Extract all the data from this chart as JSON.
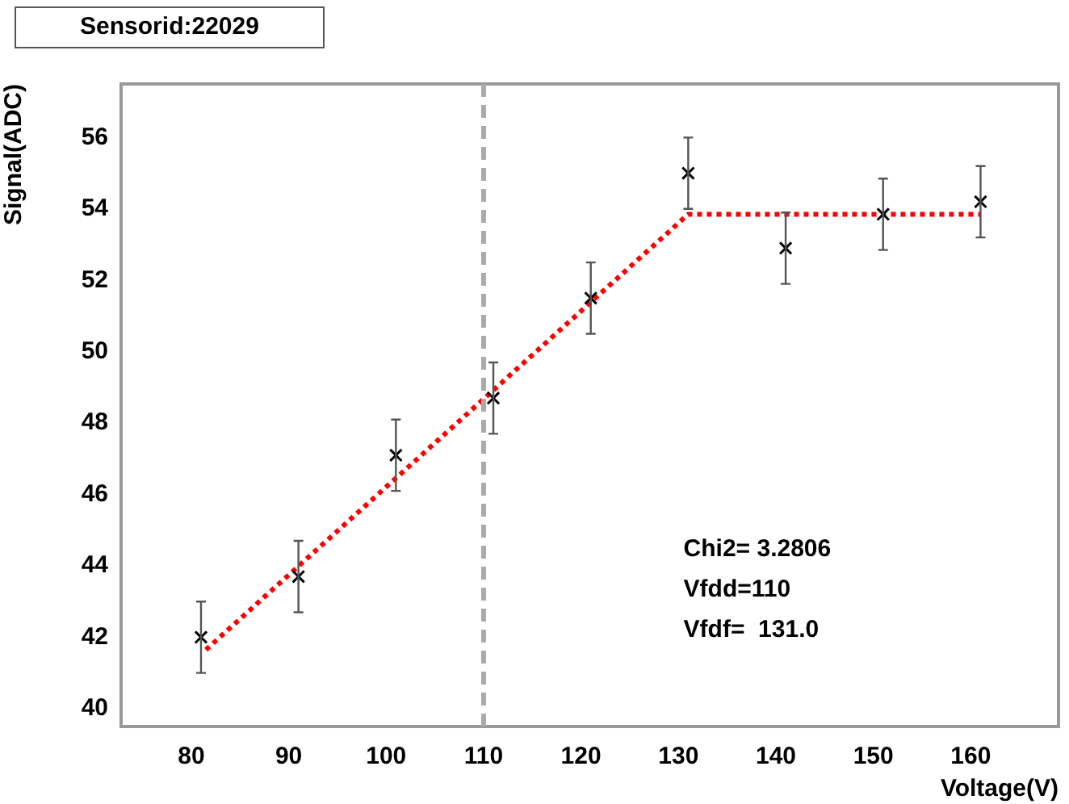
{
  "chart_data": {
    "type": "scatter",
    "title": "Sensorid:22029",
    "xlabel": "Voltage(V)",
    "ylabel": "Signal(ADC)",
    "xlim": [
      72.8,
      169
    ],
    "xticks": [
      80,
      90,
      100,
      110,
      120,
      130,
      140,
      150,
      160
    ],
    "ylim": [
      39.5,
      57.5
    ],
    "yticks": [
      40,
      42,
      44,
      46,
      48,
      50,
      52,
      54,
      56
    ],
    "grid": false,
    "legend": false,
    "series": [
      {
        "type": "scatter",
        "color": "#000000",
        "marker": "cross",
        "x": [
          81,
          91,
          101,
          111,
          121,
          131,
          141,
          151,
          161
        ],
        "values": [
          42.0,
          43.7,
          47.1,
          48.7,
          51.5,
          55.0,
          52.9,
          53.85,
          54.2
        ],
        "errors": [
          1,
          1,
          1,
          1,
          1,
          1,
          1,
          1,
          1
        ]
      },
      {
        "type": "line",
        "color": "#ff0000",
        "marker": "none",
        "line_style": "dotted",
        "x": [
          81.5,
          131,
          161
        ],
        "values": [
          41.65,
          53.85,
          53.85
        ]
      }
    ],
    "ref_lines": [
      {
        "axis": "x",
        "value": 110,
        "color": "#aaaaaa",
        "line_style": "dashed"
      }
    ],
    "annotations": [
      "Chi2= 3.2806",
      "Vfdd=110",
      "Vfdf=  131.0"
    ]
  }
}
